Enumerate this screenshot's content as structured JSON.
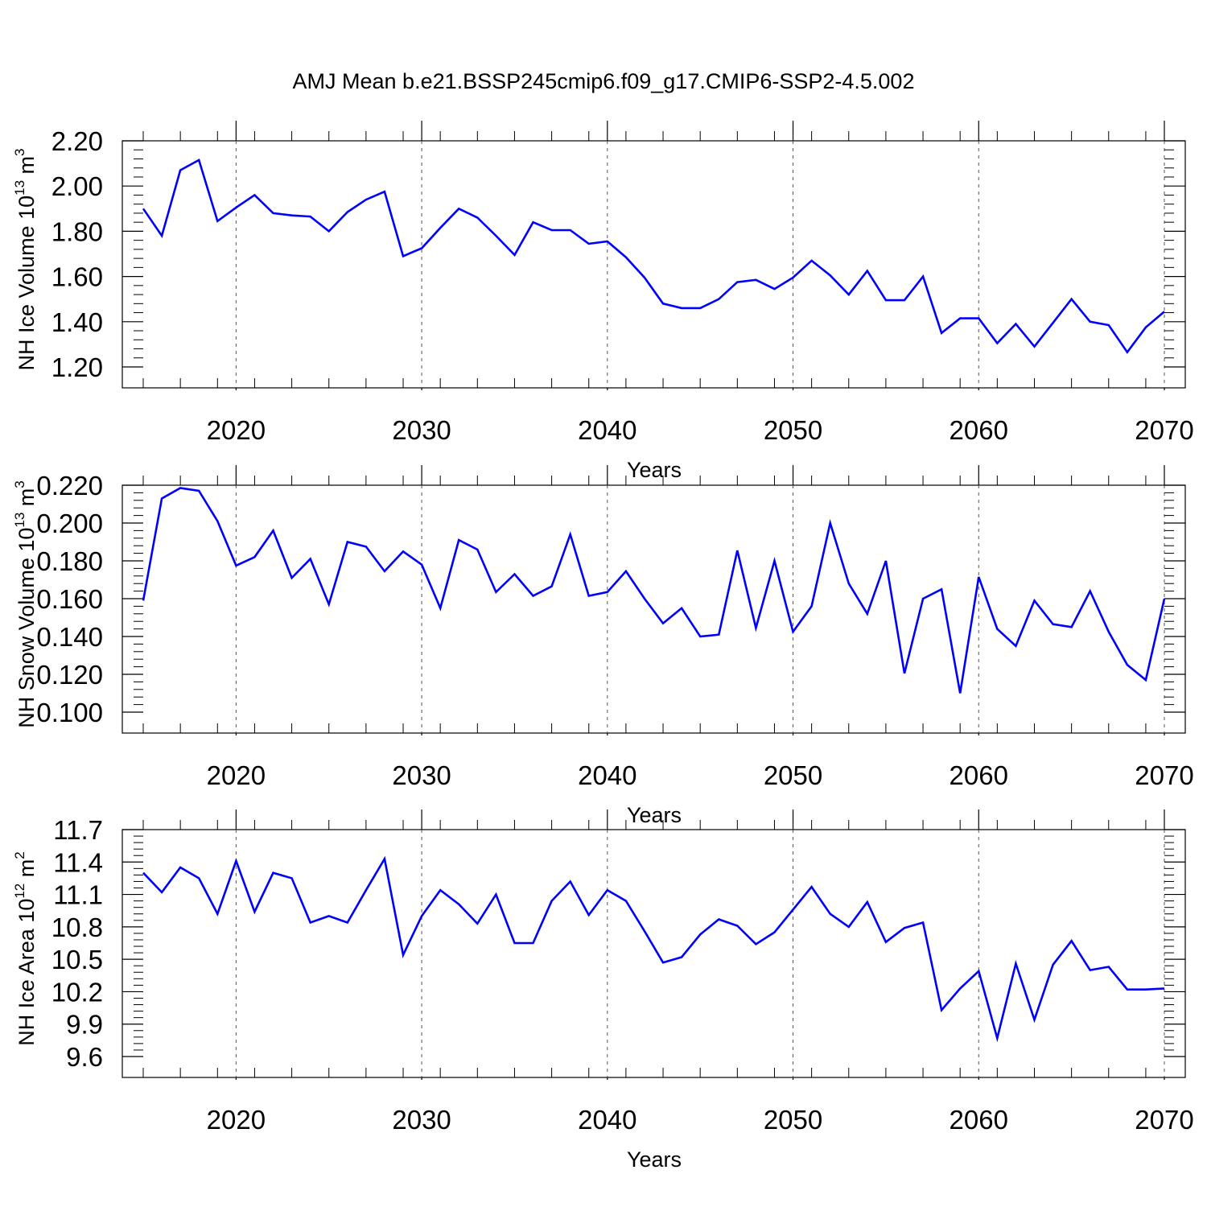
{
  "title": "AMJ Mean b.e21.BSSP245cmip6.f09_g17.CMIP6-SSP2-4.5.002",
  "colors": {
    "line": "#0000ff",
    "axis": "#000000",
    "grid": "#555555"
  },
  "chart_data": [
    {
      "type": "line",
      "xlabel": "Years",
      "ylabel": "NH Ice Volume 10",
      "ylabel_exp": "13",
      "ylabel_unit": "m",
      "ylabel_unit_exp": "3",
      "xlim": [
        2015,
        2070
      ],
      "ylim": [
        1.2,
        2.2
      ],
      "xticks": [
        "2020",
        "2030",
        "2040",
        "2050",
        "2060",
        "2070"
      ],
      "yticks": [
        "1.20",
        "1.40",
        "1.60",
        "1.80",
        "2.00",
        "2.20"
      ],
      "grid": "dashed vertical at major x ticks",
      "x": [
        2015,
        2016,
        2017,
        2018,
        2019,
        2020,
        2021,
        2022,
        2023,
        2024,
        2025,
        2026,
        2027,
        2028,
        2029,
        2030,
        2031,
        2032,
        2033,
        2034,
        2035,
        2036,
        2037,
        2038,
        2039,
        2040,
        2041,
        2042,
        2043,
        2044,
        2045,
        2046,
        2047,
        2048,
        2049,
        2050,
        2051,
        2052,
        2053,
        2054,
        2055,
        2056,
        2057,
        2058,
        2059,
        2060,
        2061,
        2062,
        2063,
        2064,
        2065,
        2066,
        2067,
        2068,
        2069,
        2070
      ],
      "values": [
        1.9,
        1.78,
        2.07,
        2.115,
        1.845,
        1.905,
        1.96,
        1.88,
        1.87,
        1.865,
        1.8,
        1.885,
        1.94,
        1.975,
        1.69,
        1.725,
        1.815,
        1.9,
        1.86,
        1.78,
        1.695,
        1.84,
        1.805,
        1.805,
        1.745,
        1.755,
        1.685,
        1.595,
        1.48,
        1.46,
        1.46,
        1.5,
        1.575,
        1.585,
        1.545,
        1.595,
        1.67,
        1.605,
        1.52,
        1.625,
        1.495,
        1.495,
        1.6,
        1.35,
        1.415,
        1.415,
        1.305,
        1.39,
        1.29,
        1.395,
        1.5,
        1.4,
        1.385,
        1.265,
        1.375,
        1.445
      ]
    },
    {
      "type": "line",
      "xlabel": "Years",
      "ylabel": "NH Snow Volume 10",
      "ylabel_exp": "13",
      "ylabel_unit": "m",
      "ylabel_unit_exp": "3",
      "xlim": [
        2015,
        2070
      ],
      "ylim": [
        0.1,
        0.22
      ],
      "xticks": [
        "2020",
        "2030",
        "2040",
        "2050",
        "2060",
        "2070"
      ],
      "yticks": [
        "0.100",
        "0.120",
        "0.140",
        "0.160",
        "0.180",
        "0.200",
        "0.220"
      ],
      "grid": "dashed vertical at major x ticks",
      "x": [
        2015,
        2016,
        2017,
        2018,
        2019,
        2020,
        2021,
        2022,
        2023,
        2024,
        2025,
        2026,
        2027,
        2028,
        2029,
        2030,
        2031,
        2032,
        2033,
        2034,
        2035,
        2036,
        2037,
        2038,
        2039,
        2040,
        2041,
        2042,
        2043,
        2044,
        2045,
        2046,
        2047,
        2048,
        2049,
        2050,
        2051,
        2052,
        2053,
        2054,
        2055,
        2056,
        2057,
        2058,
        2059,
        2060,
        2061,
        2062,
        2063,
        2064,
        2065,
        2066,
        2067,
        2068,
        2069,
        2070
      ],
      "values": [
        0.159,
        0.213,
        0.2185,
        0.217,
        0.201,
        0.1775,
        0.182,
        0.196,
        0.171,
        0.181,
        0.157,
        0.19,
        0.1875,
        0.1745,
        0.185,
        0.178,
        0.155,
        0.191,
        0.186,
        0.1635,
        0.173,
        0.1615,
        0.1665,
        0.194,
        0.1615,
        0.1635,
        0.1745,
        0.16,
        0.147,
        0.155,
        0.14,
        0.141,
        0.1855,
        0.1445,
        0.18,
        0.1425,
        0.156,
        0.2,
        0.168,
        0.152,
        0.18,
        0.1205,
        0.16,
        0.165,
        0.11,
        0.1715,
        0.144,
        0.135,
        0.159,
        0.1465,
        0.145,
        0.164,
        0.1425,
        0.125,
        0.117,
        0.16
      ]
    },
    {
      "type": "line",
      "xlabel": "Years",
      "ylabel": "NH Ice Area 10",
      "ylabel_exp": "12",
      "ylabel_unit": "m",
      "ylabel_unit_exp": "2",
      "xlim": [
        2015,
        2070
      ],
      "ylim": [
        9.6,
        11.7
      ],
      "xticks": [
        "2020",
        "2030",
        "2040",
        "2050",
        "2060",
        "2070"
      ],
      "yticks": [
        "9.6",
        "9.9",
        "10.2",
        "10.5",
        "10.8",
        "11.1",
        "11.4",
        "11.7"
      ],
      "grid": "dashed vertical at major x ticks",
      "x": [
        2015,
        2016,
        2017,
        2018,
        2019,
        2020,
        2021,
        2022,
        2023,
        2024,
        2025,
        2026,
        2027,
        2028,
        2029,
        2030,
        2031,
        2032,
        2033,
        2034,
        2035,
        2036,
        2037,
        2038,
        2039,
        2040,
        2041,
        2042,
        2043,
        2044,
        2045,
        2046,
        2047,
        2048,
        2049,
        2050,
        2051,
        2052,
        2053,
        2054,
        2055,
        2056,
        2057,
        2058,
        2059,
        2060,
        2061,
        2062,
        2063,
        2064,
        2065,
        2066,
        2067,
        2068,
        2069,
        2070
      ],
      "values": [
        11.3,
        11.12,
        11.35,
        11.25,
        10.92,
        11.41,
        10.94,
        11.3,
        11.25,
        10.84,
        10.9,
        10.84,
        11.14,
        11.43,
        10.54,
        10.9,
        11.14,
        11.01,
        10.83,
        11.1,
        10.65,
        10.65,
        11.04,
        11.22,
        10.91,
        11.14,
        11.04,
        10.76,
        10.47,
        10.52,
        10.73,
        10.87,
        10.81,
        10.64,
        10.75,
        10.96,
        11.17,
        10.92,
        10.8,
        11.03,
        10.66,
        10.79,
        10.84,
        10.03,
        10.23,
        10.39,
        9.77,
        10.46,
        9.94,
        10.45,
        10.67,
        10.4,
        10.43,
        10.22,
        10.22,
        10.23
      ]
    }
  ]
}
